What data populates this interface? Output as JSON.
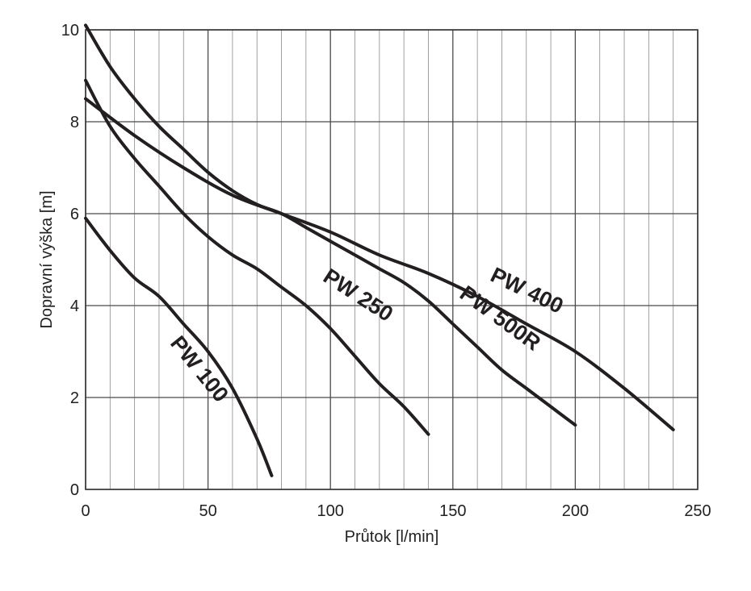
{
  "chart_data": {
    "type": "line",
    "xlabel": "Průtok [l/min]",
    "ylabel": "Dopravní výška [m]",
    "xlim": [
      0,
      250
    ],
    "ylim": [
      0,
      10
    ],
    "x_major_ticks": [
      0,
      50,
      100,
      150,
      200,
      250
    ],
    "x_minor_step": 10,
    "y_major_ticks": [
      0,
      2,
      4,
      6,
      8,
      10
    ],
    "grid": true,
    "series": [
      {
        "name": "PW 100",
        "x": [
          0,
          10,
          20,
          30,
          40,
          50,
          60,
          70,
          76
        ],
        "y": [
          5.9,
          5.2,
          4.6,
          4.2,
          3.6,
          3.0,
          2.2,
          1.1,
          0.3
        ]
      },
      {
        "name": "PW 250",
        "x": [
          0,
          10,
          20,
          30,
          40,
          50,
          60,
          70,
          80,
          90,
          100,
          110,
          120,
          130,
          140
        ],
        "y": [
          8.9,
          7.9,
          7.2,
          6.6,
          6.0,
          5.5,
          5.1,
          4.8,
          4.4,
          4.0,
          3.5,
          2.9,
          2.3,
          1.8,
          1.2
        ]
      },
      {
        "name": "PW 400",
        "x": [
          0,
          20,
          40,
          60,
          80,
          100,
          120,
          140,
          160,
          180,
          200,
          220,
          240
        ],
        "y": [
          8.5,
          7.7,
          7.0,
          6.4,
          6.0,
          5.6,
          5.1,
          4.7,
          4.2,
          3.6,
          3.0,
          2.2,
          1.3
        ]
      },
      {
        "name": "PW 500R",
        "x": [
          0,
          10,
          20,
          30,
          40,
          50,
          60,
          70,
          80,
          90,
          100,
          110,
          120,
          130,
          140,
          150,
          160,
          170,
          180,
          190,
          200
        ],
        "y": [
          10.1,
          9.2,
          8.5,
          7.9,
          7.4,
          6.9,
          6.5,
          6.2,
          6.0,
          5.7,
          5.4,
          5.1,
          4.8,
          4.5,
          4.1,
          3.6,
          3.1,
          2.6,
          2.2,
          1.8,
          1.4
        ]
      }
    ],
    "curve_labels": [
      {
        "text": "PW 100",
        "x": 46,
        "y": 2.6,
        "angle": 51
      },
      {
        "text": "PW 250",
        "x": 111,
        "y": 4.2,
        "angle": 33
      },
      {
        "text": "PW 500R",
        "x": 169,
        "y": 3.7,
        "angle": 36
      },
      {
        "text": "PW 400",
        "x": 180,
        "y": 4.3,
        "angle": 26
      }
    ]
  }
}
